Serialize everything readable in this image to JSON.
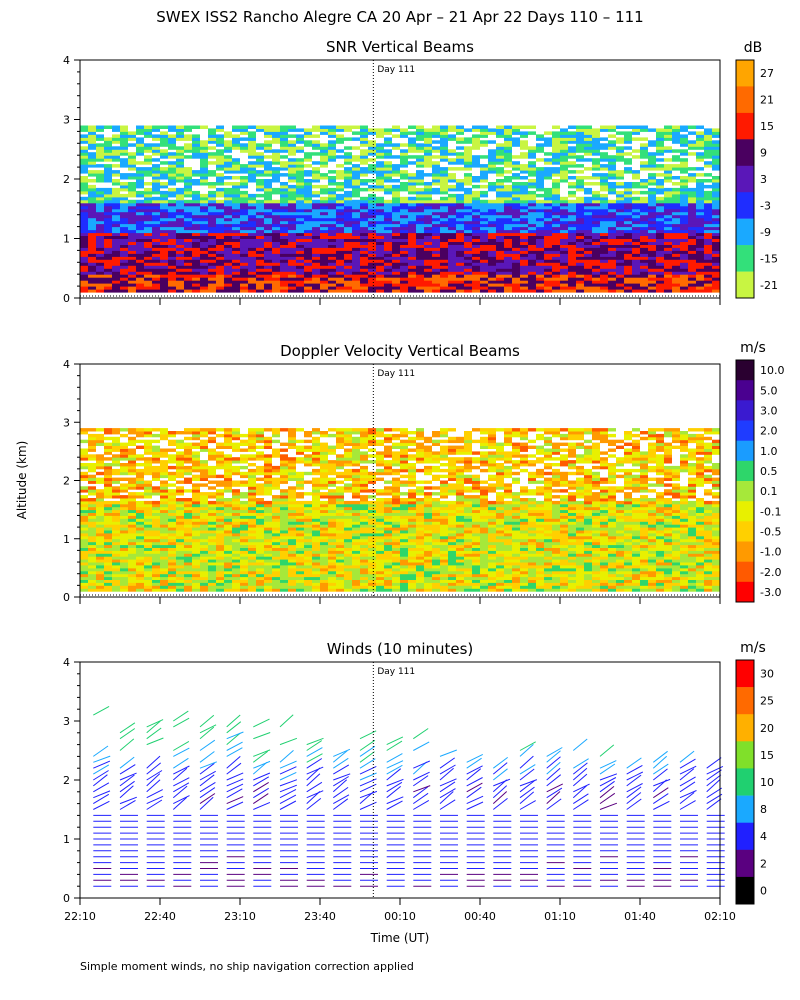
{
  "figure": {
    "title": "SWEX ISS2 Rancho Alegre CA  20 Apr – 21 Apr 22 Days 110 – 111",
    "footnote": "Simple moment winds, no ship navigation correction applied",
    "y_axis_label": "Altitude (km)",
    "x_axis_label": "Time (UT)",
    "day_marker_label": "Day 111"
  },
  "chart_data": [
    {
      "type": "heatmap",
      "title": "SNR Vertical Beams",
      "xlabel": "",
      "ylabel": "Altitude (km)",
      "x_tick_labels": [],
      "y_ticks": [
        0,
        1,
        2,
        3,
        4
      ],
      "ylim": [
        0,
        4
      ],
      "xlim_minutes": [
        0,
        240
      ],
      "day_marker_minutes": 110,
      "colorbar": {
        "unit": "dB",
        "labels": [
          "27",
          "21",
          "15",
          "9",
          "3",
          "-3",
          "-9",
          "-15",
          "-21"
        ],
        "colors": [
          "#ffa500",
          "#ff6a00",
          "#ff1a00",
          "#4a0060",
          "#5a17b8",
          "#1f2dff",
          "#1aa9ff",
          "#33e07a",
          "#c8f542"
        ]
      },
      "bands": [
        {
          "altitude_km": [
            0.1,
            0.4
          ],
          "value_dB": 15
        },
        {
          "altitude_km": [
            0.4,
            1.1
          ],
          "value_dB": 9
        },
        {
          "altitude_km": [
            1.1,
            1.6
          ],
          "value_dB": -3
        },
        {
          "altitude_km": [
            1.6,
            2.2
          ],
          "value_dB": -15
        },
        {
          "altitude_km": [
            2.2,
            2.9
          ],
          "value_dB": -15
        }
      ]
    },
    {
      "type": "heatmap",
      "title": "Doppler Velocity Vertical Beams",
      "xlabel": "",
      "ylabel": "Altitude (km)",
      "x_tick_labels": [],
      "y_ticks": [
        0,
        1,
        2,
        3,
        4
      ],
      "ylim": [
        0,
        4
      ],
      "xlim_minutes": [
        0,
        240
      ],
      "day_marker_minutes": 110,
      "colorbar": {
        "unit": "m/s",
        "labels": [
          "10.0",
          "5.0",
          "3.0",
          "2.0",
          "1.0",
          "0.5",
          "0.1",
          "-0.1",
          "-0.5",
          "-1.0",
          "-2.0",
          "-3.0"
        ],
        "colors": [
          "#2a0030",
          "#4a0090",
          "#3a1ad0",
          "#1f3cff",
          "#1a9cff",
          "#2ed66a",
          "#a6e83a",
          "#e8f000",
          "#ffd000",
          "#ff9a00",
          "#ff5a00",
          "#ff0000"
        ]
      },
      "bands": [
        {
          "altitude_km": [
            0.1,
            1.6
          ],
          "value_ms": -0.1
        },
        {
          "altitude_km": [
            1.6,
            2.3
          ],
          "value_ms": -0.5
        },
        {
          "altitude_km": [
            2.3,
            2.9
          ],
          "value_ms": -0.5
        }
      ]
    },
    {
      "type": "scatter",
      "title": "Winds (10 minutes)",
      "xlabel": "Time (UT)",
      "ylabel": "Altitude (km)",
      "x_tick_labels": [
        "22:10",
        "22:40",
        "23:10",
        "23:40",
        "00:10",
        "00:40",
        "01:10",
        "01:40",
        "02:10"
      ],
      "y_ticks": [
        0,
        1,
        2,
        3,
        4
      ],
      "ylim": [
        0,
        4
      ],
      "xlim_minutes": [
        0,
        240
      ],
      "day_marker_minutes": 110,
      "profile_interval_minutes": 10,
      "colorbar": {
        "unit": "m/s",
        "labels": [
          "30",
          "25",
          "20",
          "15",
          "10",
          "8",
          "4",
          "2",
          "0"
        ],
        "colors": [
          "#ff0000",
          "#ff6a00",
          "#ffb000",
          "#80e02a",
          "#20d070",
          "#1aa9ff",
          "#2020ff",
          "#5a0080",
          "#000000"
        ]
      },
      "wind_speed_by_altitude_ms": [
        {
          "altitude_km": 0.2,
          "speed": 4
        },
        {
          "altitude_km": 1.0,
          "speed": 6
        },
        {
          "altitude_km": 1.8,
          "speed": 5
        },
        {
          "altitude_km": 2.3,
          "speed": 9
        },
        {
          "altitude_km": 2.8,
          "speed": 12
        },
        {
          "altitude_km": 3.2,
          "speed": 15
        }
      ]
    }
  ]
}
